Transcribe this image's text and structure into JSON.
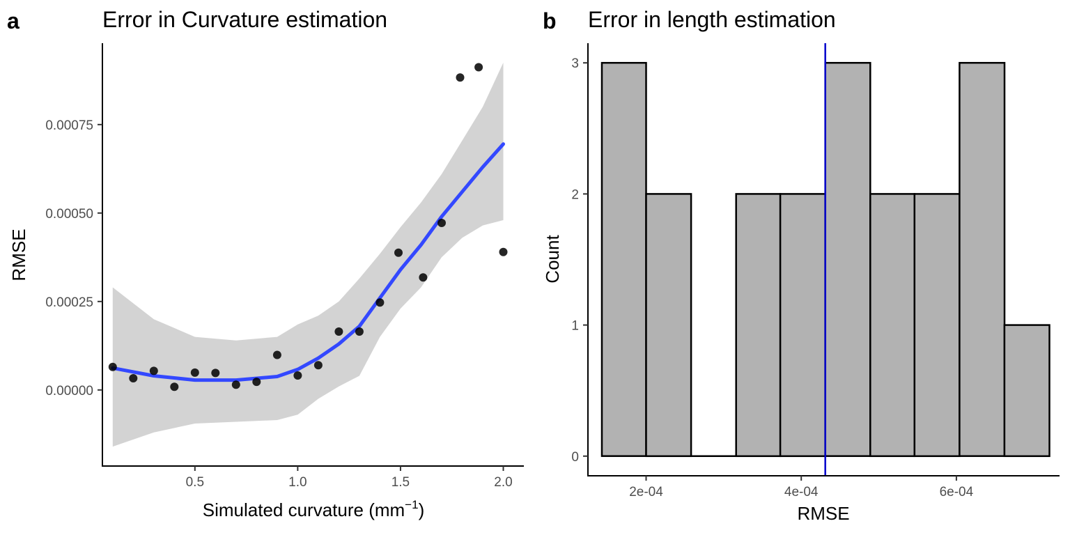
{
  "chart_data": [
    {
      "panel": "a",
      "type": "scatter",
      "title": "Error in Curvature estimation",
      "xlabel": "Simulated curvature (mm",
      "xlabel_sup": "−1",
      "xlabel_close": ")",
      "ylabel": "RMSE",
      "xlim": [
        0.05,
        2.1
      ],
      "ylim": [
        -0.000215,
        0.00098
      ],
      "x_ticks": [
        0.5,
        1.0,
        1.5,
        2.0
      ],
      "x_tick_labels": [
        "0.5",
        "1.0",
        "1.5",
        "2.0"
      ],
      "y_ticks": [
        0.0,
        0.00025,
        0.0005,
        0.00075
      ],
      "y_tick_labels": [
        "0.00000",
        "0.00025",
        "0.00050",
        "0.00075"
      ],
      "points": [
        {
          "x": 0.1,
          "y": 6.5e-05
        },
        {
          "x": 0.2,
          "y": 3.3e-05
        },
        {
          "x": 0.3,
          "y": 5.4e-05
        },
        {
          "x": 0.4,
          "y": 9e-06
        },
        {
          "x": 0.5,
          "y": 4.9e-05
        },
        {
          "x": 0.6,
          "y": 4.8e-05
        },
        {
          "x": 0.7,
          "y": 1.5e-05
        },
        {
          "x": 0.8,
          "y": 2.3e-05
        },
        {
          "x": 0.9,
          "y": 9.9e-05
        },
        {
          "x": 1.0,
          "y": 4.1e-05
        },
        {
          "x": 1.1,
          "y": 7e-05
        },
        {
          "x": 1.2,
          "y": 0.000165
        },
        {
          "x": 1.3,
          "y": 0.000165
        },
        {
          "x": 1.4,
          "y": 0.000247
        },
        {
          "x": 1.49,
          "y": 0.000388
        },
        {
          "x": 1.61,
          "y": 0.000318
        },
        {
          "x": 1.7,
          "y": 0.000472
        },
        {
          "x": 1.79,
          "y": 0.000883
        },
        {
          "x": 1.88,
          "y": 0.000912
        },
        {
          "x": 2.0,
          "y": 0.00039
        }
      ],
      "smooth": {
        "x": [
          0.1,
          0.3,
          0.5,
          0.7,
          0.9,
          1.0,
          1.1,
          1.2,
          1.3,
          1.4,
          1.5,
          1.6,
          1.7,
          1.8,
          1.9,
          2.0
        ],
        "y": [
          6.2e-05,
          4e-05,
          2.8e-05,
          2.8e-05,
          3.8e-05,
          5.8e-05,
          9e-05,
          0.00013,
          0.00018,
          0.00026,
          0.00034,
          0.00041,
          0.00049,
          0.00056,
          0.00063,
          0.000695
        ],
        "lower": [
          -0.00016,
          -0.00012,
          -9.5e-05,
          -9e-05,
          -8.5e-05,
          -7e-05,
          -2.5e-05,
          1e-05,
          4e-05,
          0.00015,
          0.00023,
          0.00029,
          0.000375,
          0.00043,
          0.000465,
          0.00048
        ],
        "upper": [
          0.00029,
          0.0002,
          0.00015,
          0.00014,
          0.00015,
          0.000185,
          0.00021,
          0.00025,
          0.000315,
          0.000385,
          0.00046,
          0.00053,
          0.00061,
          0.000705,
          0.0008,
          0.000925
        ]
      },
      "colors": {
        "points": "#000000",
        "smooth_line": "#3348ff",
        "ribbon": "#d3d3d3"
      }
    },
    {
      "panel": "b",
      "type": "bar",
      "subtype": "histogram",
      "title": "Error in length estimation",
      "xlabel": "RMSE",
      "ylabel": "Count",
      "xlim": [
        0.000125,
        0.000733
      ],
      "ylim": [
        -0.15,
        3.15
      ],
      "x_ticks": [
        0.0002,
        0.0004,
        0.0006
      ],
      "x_tick_labels": [
        "2e-04",
        "4e-04",
        "6e-04"
      ],
      "y_ticks": [
        0,
        1,
        2,
        3
      ],
      "y_tick_labels": [
        "0",
        "1",
        "2",
        "3"
      ],
      "bins": [
        {
          "start": 0.000143,
          "end": 0.0002,
          "count": 3
        },
        {
          "start": 0.0002,
          "end": 0.000258,
          "count": 2
        },
        {
          "start": 0.000258,
          "end": 0.000316,
          "count": 0
        },
        {
          "start": 0.000316,
          "end": 0.000373,
          "count": 2
        },
        {
          "start": 0.000373,
          "end": 0.000431,
          "count": 2
        },
        {
          "start": 0.000431,
          "end": 0.000489,
          "count": 3
        },
        {
          "start": 0.000489,
          "end": 0.000546,
          "count": 2
        },
        {
          "start": 0.000546,
          "end": 0.000604,
          "count": 2
        },
        {
          "start": 0.000604,
          "end": 0.000662,
          "count": 3
        },
        {
          "start": 0.000662,
          "end": 0.00072,
          "count": 1
        }
      ],
      "vline_x": 0.000431,
      "colors": {
        "bar_fill": "#b2b2b2",
        "bar_stroke": "#000000",
        "vline": "#0000cc"
      }
    }
  ]
}
